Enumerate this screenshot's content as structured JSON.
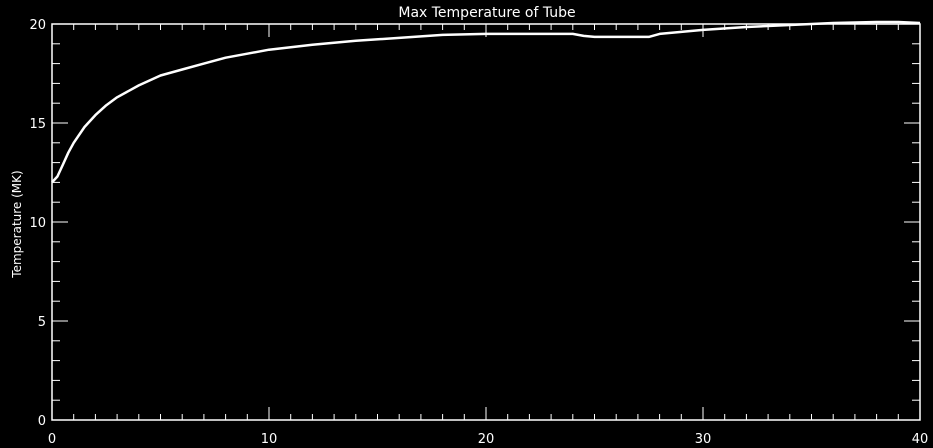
{
  "chart_data": {
    "type": "line",
    "title": "Max Temperature of Tube",
    "xlabel": "",
    "ylabel": "Temperature (MK)",
    "xlim": [
      0,
      40
    ],
    "ylim": [
      0,
      20
    ],
    "x_ticks": [
      0,
      10,
      20,
      30,
      40
    ],
    "x_tick_labels": [
      "0",
      "10",
      "20",
      "30",
      "40"
    ],
    "y_ticks": [
      0,
      5,
      10,
      15,
      20
    ],
    "y_tick_labels": [
      "0",
      "5",
      "10",
      "15",
      "20"
    ],
    "x_minor_step": 1,
    "y_minor_step": 1,
    "grid": false,
    "legend": "none",
    "background_color": "#000000",
    "foreground_color": "#ffffff",
    "series": [
      {
        "color": "#ffffff",
        "x": [
          0,
          0.25,
          0.5,
          0.75,
          1,
          1.5,
          2,
          2.5,
          3,
          4,
          5,
          6,
          7,
          8,
          9,
          10,
          12,
          14,
          16,
          18,
          20,
          22,
          24,
          24.5,
          25,
          26,
          27.5,
          28,
          29,
          30,
          32,
          34,
          36,
          38,
          39,
          40
        ],
        "y": [
          12.0,
          12.3,
          12.9,
          13.5,
          14.0,
          14.8,
          15.4,
          15.9,
          16.3,
          16.9,
          17.4,
          17.7,
          18.0,
          18.3,
          18.5,
          18.7,
          18.95,
          19.15,
          19.3,
          19.45,
          19.5,
          19.5,
          19.5,
          19.4,
          19.35,
          19.35,
          19.35,
          19.5,
          19.6,
          19.7,
          19.85,
          19.95,
          20.05,
          20.1,
          20.1,
          20.05
        ]
      }
    ]
  }
}
